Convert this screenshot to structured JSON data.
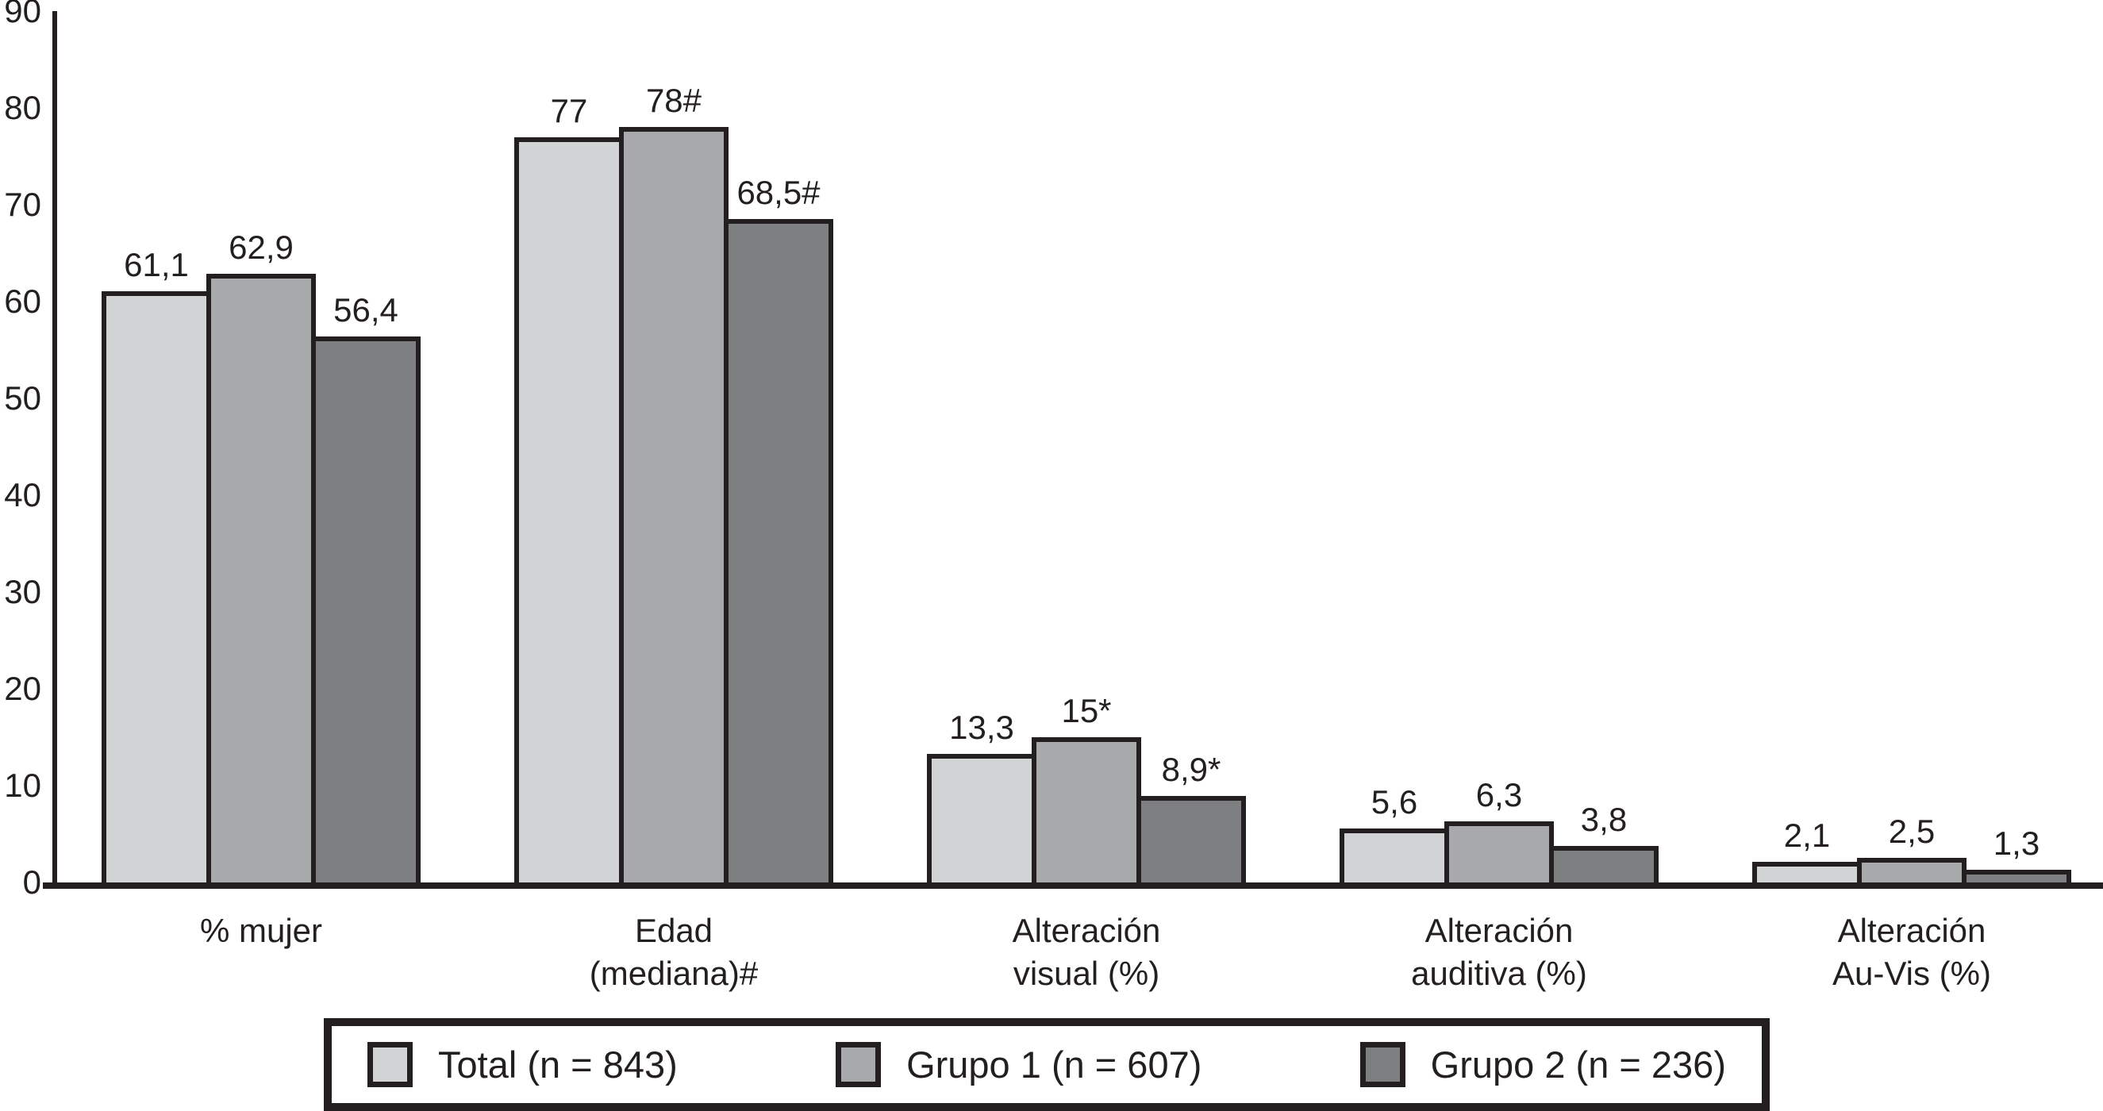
{
  "figure": {
    "background": "#ffffff",
    "ink_color": "#231f20"
  },
  "chart_data": {
    "type": "bar",
    "title": "",
    "xlabel": "",
    "ylabel": "",
    "grid": false,
    "legend_position": "bottom",
    "categories": [
      "% mujer",
      "Edad\n(mediana)#",
      "Alteración\nvisual (%)",
      "Alteración\nauditiva (%)",
      "Alteración\nAu-Vis (%)"
    ],
    "series": [
      {
        "key": "total",
        "name": "Total (n = 843)",
        "color": "#d2d3d5",
        "values": [
          61.1,
          77,
          13.3,
          5.6,
          2.1
        ],
        "value_labels": [
          "61,1",
          "77",
          "13,3",
          "5,6",
          "2,1"
        ]
      },
      {
        "key": "grupo1",
        "name": "Grupo 1 (n = 607)",
        "color": "#a8a9ab",
        "values": [
          62.9,
          78,
          15,
          6.3,
          2.5
        ],
        "value_labels": [
          "62,9",
          "78#",
          "15*",
          "6,3",
          "2,5"
        ]
      },
      {
        "key": "grupo2",
        "name": "Grupo 2 (n = 236)",
        "color": "#7d7f81",
        "values": [
          56.4,
          68.5,
          8.9,
          3.8,
          1.3
        ],
        "value_labels": [
          "56,4",
          "68,5#",
          "8,9*",
          "3,8",
          "1,3"
        ]
      }
    ],
    "y_axis": {
      "min": 0,
      "max": 90,
      "step": 10,
      "ticks": [
        0,
        10,
        20,
        30,
        40,
        50,
        60,
        70,
        80,
        90
      ]
    }
  }
}
